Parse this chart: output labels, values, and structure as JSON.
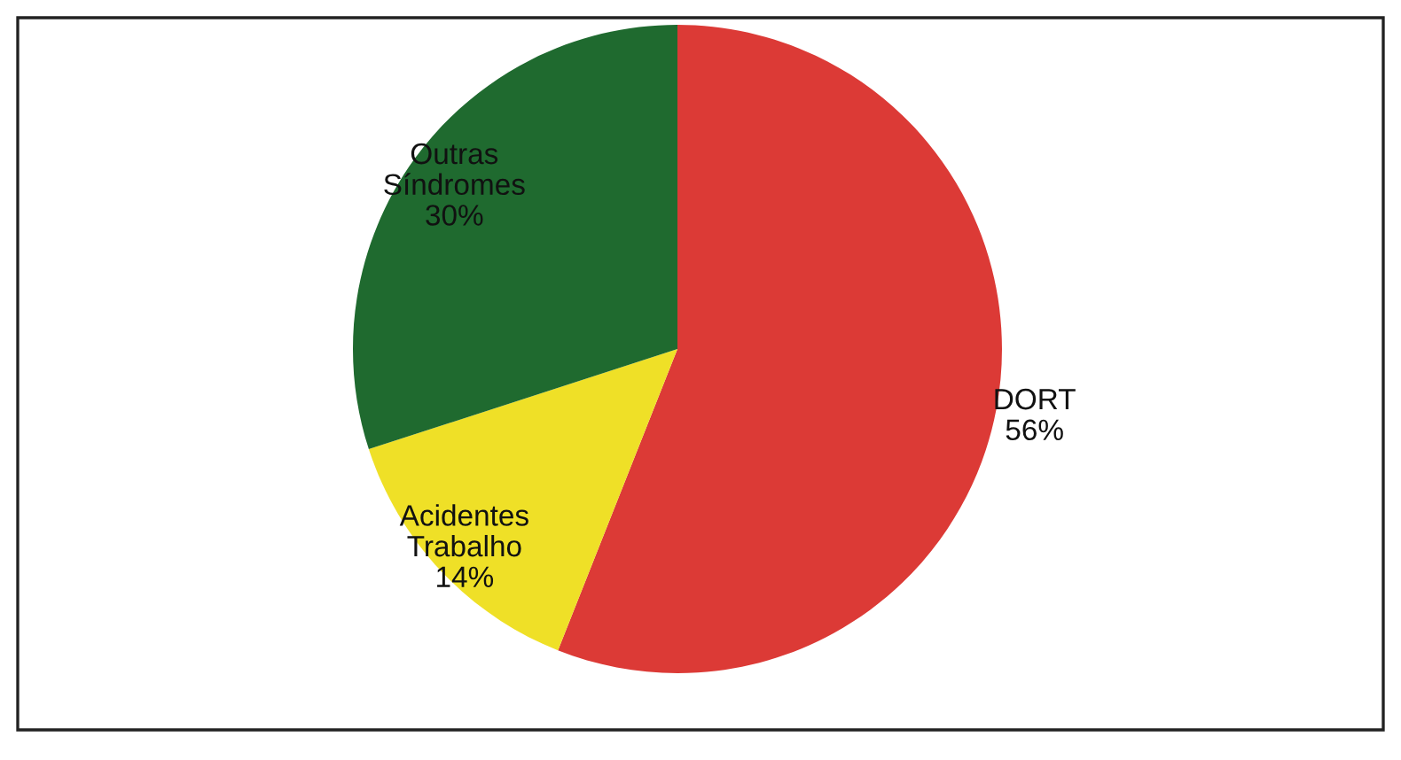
{
  "chart_data": {
    "type": "pie",
    "categories": [
      "DORT",
      "Acidentes\nTrabalho",
      "Outras\nSíndromes"
    ],
    "values": [
      56,
      14,
      30
    ],
    "colors": [
      "#dc3a36",
      "#efe027",
      "#1f6a2f"
    ],
    "value_labels": [
      "56%",
      "14%",
      "30%"
    ]
  }
}
